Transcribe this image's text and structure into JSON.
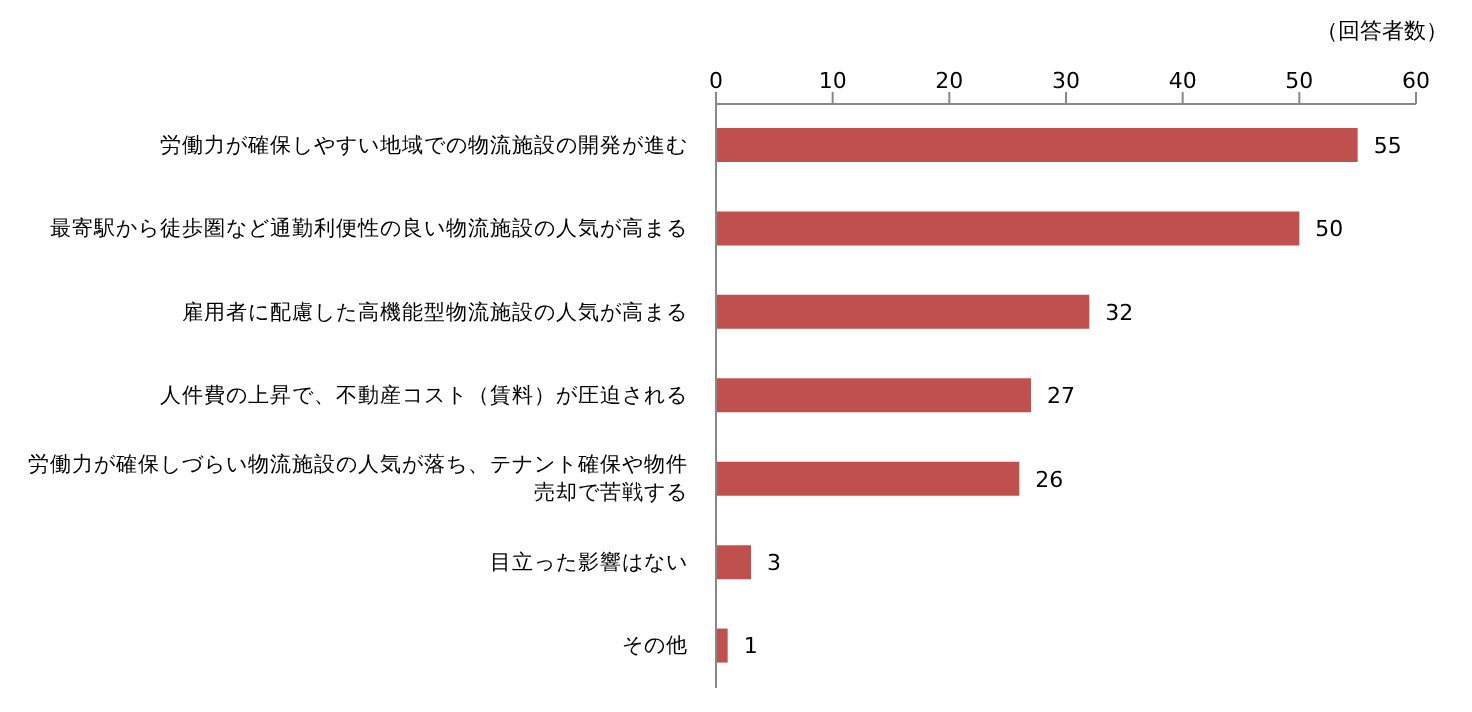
{
  "chart_data": {
    "type": "bar",
    "orientation": "horizontal",
    "xlabel": "（回答者数）",
    "categories": [
      "労働力が確保しやすい地域での物流施設の開発が進む",
      "最寄駅から徒歩圏など通勤利便性の良い物流施設の人気が高まる",
      "雇用者に配慮した高機能型物流施設の人気が高まる",
      "人件費の上昇で、不動産コスト（賃料）が圧迫される",
      "労働力が確保しづらい物流施設の人気が落ち、テナント確保や物件売却で苦戦する",
      "目立った影響はない",
      "その他"
    ],
    "values": [
      55,
      50,
      32,
      27,
      26,
      3,
      1
    ],
    "color": "#c0504d",
    "xlim": [
      0,
      60
    ],
    "xticks": [
      0,
      10,
      20,
      30,
      40,
      50,
      60
    ],
    "data_labels": true,
    "grid": false,
    "legend": false
  }
}
